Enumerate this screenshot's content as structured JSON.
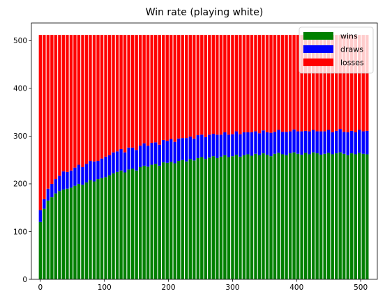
{
  "chart_data": {
    "type": "bar",
    "stacked": true,
    "title": "Win rate (playing white)",
    "xlabel": "",
    "ylabel": "",
    "total_per_bar": 512,
    "xlim": [
      -14,
      526
    ],
    "ylim": [
      0,
      537
    ],
    "x_ticks": [
      0,
      100,
      200,
      300,
      400,
      500
    ],
    "y_ticks": [
      0,
      100,
      200,
      300,
      400,
      500
    ],
    "grid": false,
    "legend": {
      "position": "top-right",
      "entries": [
        "wins",
        "draws",
        "losses"
      ]
    },
    "colors": {
      "wins": "#008000",
      "draws": "#0000ff",
      "losses": "#ff0000"
    },
    "x": [
      0,
      6,
      12,
      18,
      24,
      30,
      36,
      42,
      48,
      54,
      60,
      66,
      72,
      78,
      84,
      90,
      96,
      102,
      108,
      114,
      120,
      126,
      132,
      138,
      144,
      150,
      156,
      162,
      168,
      174,
      180,
      186,
      192,
      198,
      204,
      210,
      216,
      222,
      228,
      234,
      240,
      246,
      252,
      258,
      264,
      270,
      276,
      282,
      288,
      294,
      300,
      306,
      312,
      318,
      324,
      330,
      336,
      342,
      348,
      354,
      360,
      366,
      372,
      378,
      384,
      390,
      396,
      402,
      408,
      414,
      420,
      426,
      432,
      438,
      444,
      450,
      456,
      462,
      468,
      474,
      480,
      486,
      492,
      498,
      504,
      510
    ],
    "series": [
      {
        "name": "wins",
        "values": [
          120,
          148,
          165,
          172,
          180,
          185,
          188,
          190,
          192,
          196,
          200,
          198,
          203,
          208,
          205,
          210,
          212,
          214,
          218,
          222,
          225,
          228,
          224,
          230,
          232,
          228,
          235,
          238,
          236,
          240,
          242,
          238,
          245,
          244,
          246,
          243,
          248,
          250,
          247,
          252,
          249,
          254,
          256,
          252,
          255,
          258,
          254,
          257,
          260,
          256,
          258,
          261,
          257,
          260,
          262,
          259,
          263,
          260,
          264,
          261,
          258,
          263,
          265,
          262,
          260,
          264,
          266,
          263,
          261,
          265,
          262,
          266,
          264,
          261,
          263,
          265,
          262,
          264,
          266,
          263,
          260,
          264,
          262,
          265,
          263,
          262
        ]
      },
      {
        "name": "draws",
        "values": [
          25,
          20,
          25,
          28,
          30,
          32,
          38,
          35,
          36,
          38,
          40,
          37,
          39,
          40,
          42,
          38,
          41,
          43,
          42,
          44,
          43,
          45,
          42,
          46,
          44,
          43,
          45,
          47,
          44,
          46,
          45,
          44,
          47,
          46,
          48,
          45,
          47,
          46,
          49,
          47,
          46,
          48,
          47,
          46,
          48,
          47,
          49,
          46,
          48,
          47,
          46,
          49,
          47,
          48,
          46,
          49,
          47,
          46,
          48,
          47,
          49,
          46,
          48,
          47,
          49,
          46,
          48,
          47,
          49,
          46,
          48,
          47,
          46,
          49,
          47,
          48,
          46,
          47,
          49,
          46,
          48,
          47,
          46,
          48,
          47,
          49
        ]
      }
    ]
  }
}
